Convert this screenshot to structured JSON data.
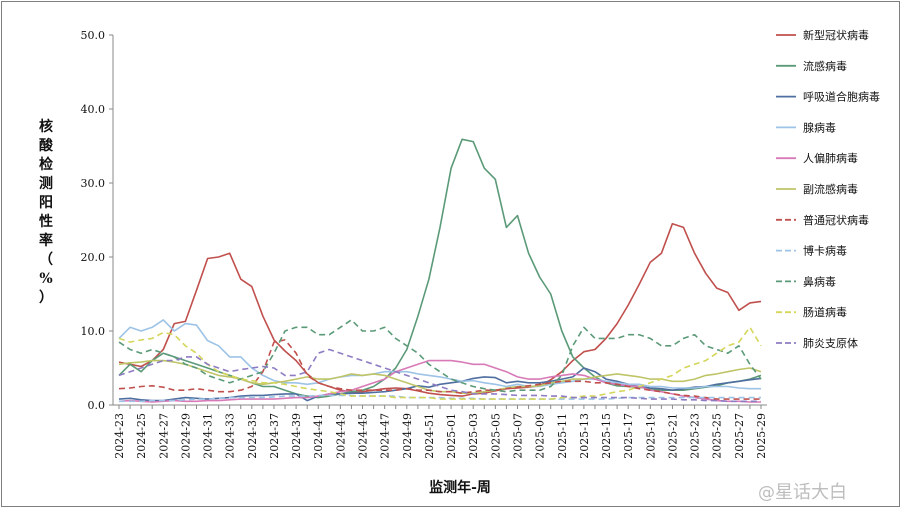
{
  "chart_data": {
    "type": "line",
    "ylabel": "核酸检测阳性率（%）",
    "xlabel": "监测年-周",
    "ylim": [
      0,
      50
    ],
    "yticks": [
      "0.0",
      "10.0",
      "20.0",
      "30.0",
      "40.0",
      "50.0"
    ],
    "x": [
      "2024-23",
      "2024-24",
      "2024-25",
      "2024-26",
      "2024-27",
      "2024-28",
      "2024-29",
      "2024-30",
      "2024-31",
      "2024-32",
      "2024-33",
      "2024-34",
      "2024-35",
      "2024-36",
      "2024-37",
      "2024-38",
      "2024-39",
      "2024-40",
      "2024-41",
      "2024-42",
      "2024-43",
      "2024-44",
      "2024-45",
      "2024-46",
      "2024-47",
      "2024-48",
      "2024-49",
      "2024-50",
      "2024-51",
      "2024-52",
      "2025-01",
      "2025-02",
      "2025-03",
      "2025-04",
      "2025-05",
      "2025-06",
      "2025-07",
      "2025-08",
      "2025-09",
      "2025-10",
      "2025-11",
      "2025-12",
      "2025-13",
      "2025-14",
      "2025-15",
      "2025-16",
      "2025-17",
      "2025-18",
      "2025-19",
      "2025-20",
      "2025-21",
      "2025-22",
      "2025-23",
      "2025-24",
      "2025-25",
      "2025-26",
      "2025-27",
      "2025-28",
      "2025-29"
    ],
    "xticks": [
      "2024-23",
      "2024-25",
      "2024-27",
      "2024-29",
      "2024-31",
      "2024-33",
      "2024-35",
      "2024-37",
      "2024-39",
      "2024-41",
      "2024-43",
      "2024-45",
      "2024-47",
      "2024-49",
      "2024-51",
      "2025-01",
      "2025-03",
      "2025-05",
      "2025-07",
      "2025-09",
      "2025-11",
      "2025-13",
      "2025-15",
      "2025-17",
      "2025-19",
      "2025-21",
      "2025-23",
      "2025-25",
      "2025-27",
      "2025-29"
    ],
    "legend_position": "right",
    "series": [
      {
        "name": "新型冠状病毒",
        "color": "#c0504d",
        "dash": false,
        "values": [
          5.8,
          5.5,
          5.2,
          6.0,
          7.5,
          11.0,
          11.3,
          15.5,
          19.8,
          20.0,
          20.5,
          17.0,
          16.0,
          12.0,
          8.8,
          7.3,
          6.0,
          4.2,
          3.0,
          2.5,
          2.0,
          1.8,
          1.8,
          2.0,
          2.2,
          2.3,
          2.2,
          1.9,
          1.6,
          1.4,
          1.3,
          1.2,
          1.5,
          1.6,
          1.9,
          2.2,
          2.3,
          2.4,
          2.6,
          3.4,
          4.5,
          6.0,
          7.2,
          7.5,
          9.0,
          11.0,
          13.5,
          16.3,
          19.3,
          20.5,
          24.5,
          24.0,
          20.5,
          17.8,
          15.8,
          15.2,
          12.8,
          13.8,
          14.0
        ]
      },
      {
        "name": "流感病毒",
        "color": "#5b9a78",
        "dash": false,
        "values": [
          4.0,
          5.5,
          4.5,
          6.0,
          7.0,
          6.5,
          6.0,
          5.5,
          5.0,
          4.5,
          4.0,
          3.5,
          3.0,
          2.5,
          2.5,
          2.0,
          1.5,
          1.2,
          1.0,
          1.2,
          1.5,
          1.8,
          2.0,
          2.5,
          3.5,
          5.0,
          7.5,
          12.0,
          17.0,
          24.0,
          32.0,
          35.9,
          35.6,
          32.0,
          30.5,
          24.0,
          25.6,
          20.5,
          17.3,
          15.0,
          10.0,
          6.5,
          5.0,
          3.8,
          3.0,
          2.6,
          2.5,
          2.4,
          2.2,
          2.0,
          2.0,
          2.0,
          2.2,
          2.4,
          2.6,
          3.0,
          3.2,
          3.5,
          4.0
        ]
      },
      {
        "name": "呼吸道合胞病毒",
        "color": "#4f6fa0",
        "dash": false,
        "values": [
          0.8,
          0.9,
          0.7,
          0.6,
          0.6,
          0.8,
          1.0,
          0.9,
          0.8,
          0.9,
          1.0,
          1.2,
          1.3,
          1.3,
          1.4,
          1.5,
          1.5,
          0.6,
          1.2,
          1.5,
          1.5,
          1.6,
          1.6,
          1.7,
          1.8,
          2.0,
          2.2,
          2.6,
          2.4,
          2.8,
          3.0,
          3.2,
          3.6,
          3.8,
          3.7,
          3.0,
          3.2,
          3.0,
          3.0,
          3.2,
          3.5,
          3.8,
          5.0,
          4.5,
          3.5,
          3.2,
          2.8,
          2.5,
          2.3,
          2.2,
          2.0,
          2.2,
          2.4,
          2.5,
          2.8,
          3.0,
          3.2,
          3.4,
          3.6
        ]
      },
      {
        "name": "腺病毒",
        "color": "#9dc3e6",
        "dash": false,
        "values": [
          9.0,
          10.5,
          10.0,
          10.5,
          11.5,
          10.0,
          11.0,
          10.8,
          8.7,
          8.0,
          6.5,
          6.5,
          5.0,
          4.0,
          3.3,
          3.0,
          3.0,
          2.8,
          3.0,
          3.5,
          3.8,
          4.0,
          4.0,
          4.2,
          4.5,
          4.5,
          4.5,
          4.2,
          4.0,
          3.8,
          3.5,
          3.2,
          3.3,
          3.0,
          2.8,
          2.5,
          2.8,
          2.5,
          2.5,
          2.8,
          3.0,
          3.2,
          3.5,
          3.5,
          3.2,
          3.0,
          2.8,
          2.8,
          2.5,
          2.5,
          2.3,
          2.3,
          2.3,
          2.5,
          2.5,
          2.5,
          2.3,
          2.2,
          2.2
        ]
      },
      {
        "name": "人偏肺病毒",
        "color": "#d87ab7",
        "dash": false,
        "values": [
          0.5,
          0.6,
          0.5,
          0.4,
          0.5,
          0.6,
          0.5,
          0.5,
          0.6,
          0.6,
          0.7,
          0.8,
          0.8,
          0.8,
          0.8,
          0.9,
          1.0,
          1.0,
          1.2,
          1.5,
          1.8,
          2.0,
          2.5,
          3.0,
          3.5,
          4.5,
          5.0,
          5.5,
          6.0,
          6.0,
          6.0,
          5.8,
          5.5,
          5.5,
          5.0,
          4.5,
          3.8,
          3.5,
          3.5,
          3.8,
          4.0,
          4.2,
          4.0,
          3.5,
          3.0,
          2.8,
          2.6,
          2.5,
          2.0,
          1.8,
          1.5,
          1.2,
          1.0,
          0.8,
          0.6,
          0.5,
          0.5,
          0.4,
          0.4
        ]
      },
      {
        "name": "副流感病毒",
        "color": "#bfc567",
        "dash": false,
        "values": [
          5.5,
          5.7,
          5.8,
          6.0,
          6.0,
          5.8,
          5.5,
          5.0,
          4.5,
          4.0,
          3.8,
          3.5,
          3.0,
          2.8,
          3.0,
          3.2,
          3.5,
          3.8,
          3.5,
          3.5,
          3.8,
          4.2,
          4.0,
          4.2,
          4.0,
          3.5,
          3.0,
          2.5,
          2.0,
          1.8,
          1.8,
          1.6,
          1.6,
          1.8,
          2.0,
          2.3,
          2.5,
          2.5,
          2.6,
          3.0,
          3.2,
          3.5,
          3.5,
          3.8,
          4.0,
          4.2,
          4.0,
          3.8,
          3.5,
          3.5,
          3.2,
          3.2,
          3.5,
          4.0,
          4.2,
          4.5,
          4.8,
          5.0,
          4.5
        ]
      },
      {
        "name": "普通冠状病毒",
        "color": "#c0504d",
        "dash": true,
        "values": [
          2.2,
          2.3,
          2.5,
          2.6,
          2.4,
          2.0,
          2.0,
          2.2,
          2.0,
          1.8,
          1.8,
          2.0,
          2.5,
          4.5,
          8.5,
          8.8,
          7.0,
          4.0,
          3.0,
          2.5,
          2.2,
          2.0,
          2.0,
          2.0,
          2.0,
          2.0,
          2.2,
          2.0,
          2.0,
          1.8,
          1.8,
          1.6,
          1.8,
          2.0,
          2.0,
          2.2,
          2.4,
          2.6,
          2.8,
          3.0,
          3.2,
          3.2,
          3.2,
          3.0,
          3.0,
          2.8,
          2.5,
          2.2,
          2.0,
          1.8,
          1.5,
          1.3,
          1.2,
          1.0,
          0.8,
          0.8,
          0.8,
          0.8,
          0.8
        ]
      },
      {
        "name": "博卡病毒",
        "color": "#9dc3e6",
        "dash": true,
        "values": [
          0.5,
          0.5,
          0.5,
          0.6,
          0.6,
          0.6,
          0.7,
          0.8,
          0.8,
          0.9,
          1.0,
          1.0,
          1.0,
          1.0,
          1.1,
          1.2,
          1.2,
          1.2,
          1.3,
          1.3,
          1.3,
          1.3,
          1.2,
          1.2,
          1.2,
          1.2,
          1.0,
          1.0,
          1.0,
          1.0,
          0.9,
          0.9,
          0.9,
          0.8,
          0.8,
          0.8,
          0.8,
          0.8,
          0.8,
          0.8,
          0.8,
          0.8,
          0.8,
          0.8,
          0.8,
          0.9,
          1.0,
          1.0,
          1.0,
          1.0,
          1.0,
          1.0,
          1.0,
          1.0,
          1.0,
          1.0,
          1.0,
          1.0,
          1.0
        ]
      },
      {
        "name": "鼻病毒",
        "color": "#5b9a78",
        "dash": true,
        "values": [
          8.5,
          7.5,
          7.0,
          7.5,
          7.0,
          6.5,
          5.5,
          5.0,
          4.0,
          3.5,
          3.0,
          3.5,
          4.0,
          4.5,
          7.0,
          10.0,
          10.5,
          10.5,
          9.5,
          9.5,
          10.5,
          11.5,
          10.0,
          10.0,
          10.5,
          9.0,
          8.0,
          7.0,
          5.5,
          4.5,
          3.5,
          3.0,
          2.5,
          2.2,
          2.0,
          1.8,
          2.0,
          2.0,
          2.0,
          2.5,
          4.0,
          8.0,
          10.5,
          9.0,
          9.0,
          9.0,
          9.5,
          9.5,
          9.0,
          8.0,
          8.0,
          9.0,
          9.5,
          8.0,
          7.5,
          7.0,
          8.0,
          5.5,
          3.5
        ]
      },
      {
        "name": "肠道病毒",
        "color": "#d4d65b",
        "dash": true,
        "values": [
          9.0,
          8.5,
          8.8,
          9.0,
          9.8,
          9.5,
          8.0,
          7.0,
          5.5,
          4.5,
          4.0,
          3.5,
          3.3,
          3.0,
          3.0,
          2.8,
          2.5,
          2.2,
          2.0,
          1.8,
          1.5,
          1.2,
          1.2,
          1.2,
          1.2,
          1.0,
          1.0,
          1.0,
          1.0,
          0.8,
          0.8,
          0.8,
          0.8,
          0.8,
          0.8,
          0.8,
          0.8,
          0.8,
          0.8,
          0.8,
          1.0,
          1.0,
          1.2,
          1.2,
          1.5,
          1.8,
          2.0,
          2.5,
          3.0,
          3.5,
          4.0,
          5.0,
          5.5,
          6.0,
          7.0,
          8.0,
          8.5,
          10.5,
          8.0
        ]
      },
      {
        "name": "肺炎支原体",
        "color": "#8e7cc3",
        "dash": true,
        "values": [
          4.0,
          4.5,
          5.0,
          5.5,
          6.0,
          6.0,
          6.5,
          6.5,
          5.5,
          5.0,
          4.5,
          4.8,
          5.0,
          5.2,
          5.0,
          4.0,
          4.0,
          4.5,
          7.0,
          7.5,
          7.0,
          6.5,
          6.0,
          5.5,
          5.0,
          4.5,
          4.0,
          3.5,
          3.0,
          2.5,
          2.0,
          1.8,
          1.5,
          1.5,
          1.5,
          1.4,
          1.3,
          1.3,
          1.3,
          1.2,
          1.2,
          1.0,
          1.0,
          1.0,
          1.0,
          1.0,
          1.0,
          0.9,
          0.8,
          0.8,
          0.8,
          0.7,
          0.7,
          0.6,
          0.6,
          0.5,
          0.5,
          0.5,
          0.5
        ]
      }
    ]
  },
  "watermark": {
    "text": "星话大白",
    "at": "@"
  }
}
